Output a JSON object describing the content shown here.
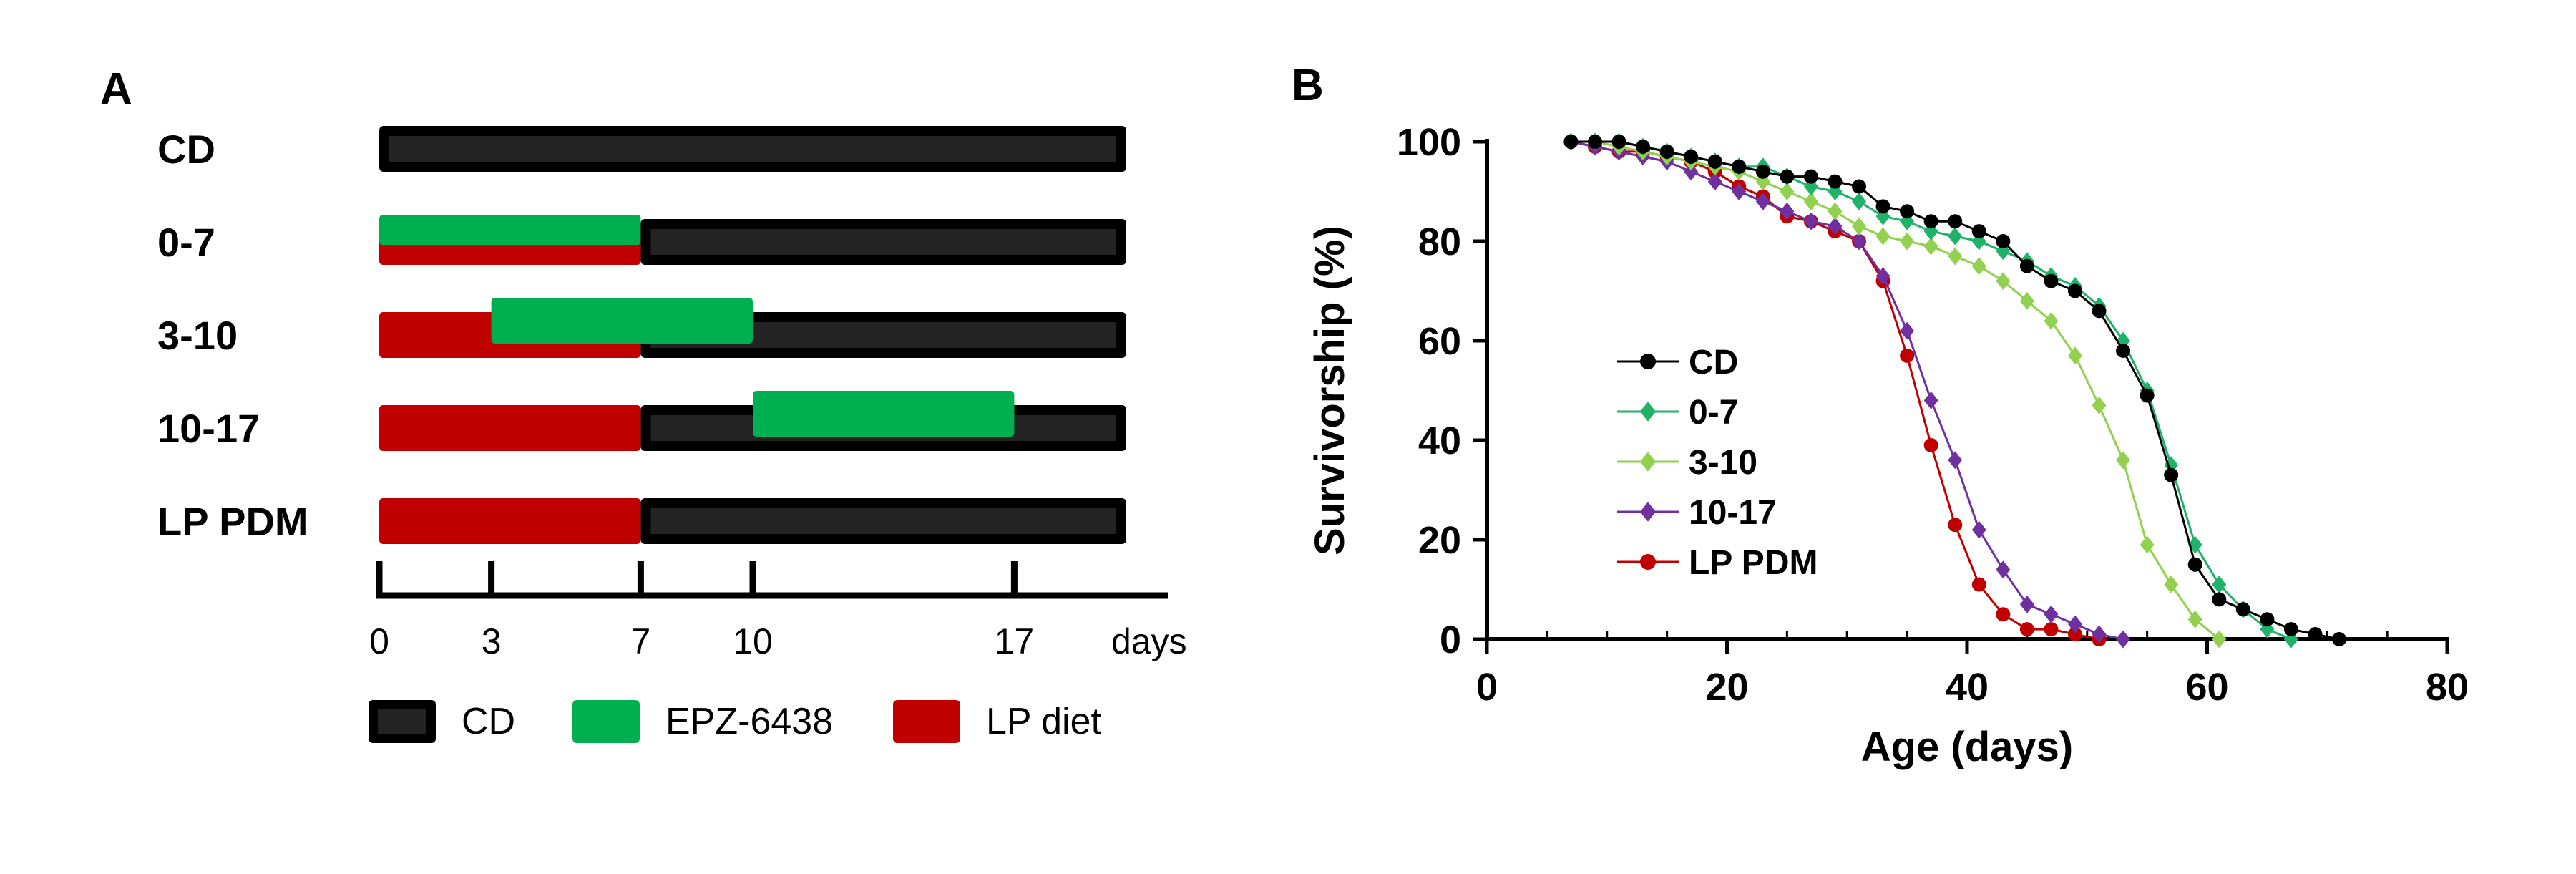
{
  "panel_a": {
    "letter": "A",
    "rows": [
      "CD",
      "0-7",
      "3-10",
      "10-17",
      "LP PDM"
    ],
    "axis_ticks": [
      "0",
      "3",
      "7",
      "10",
      "17"
    ],
    "axis_unit": "days",
    "legend": [
      "CD",
      "EPZ-6438",
      "LP diet"
    ],
    "colors": {
      "CD": "#000000",
      "EPZ-6438": "#00b050",
      "LP diet": "#c00000"
    }
  },
  "panel_b": {
    "letter": "B"
  },
  "chart_data": [
    {
      "type": "timeline",
      "xlim": [
        0,
        20
      ],
      "rows": [
        {
          "label": "CD",
          "segments": [
            {
              "treatment": "CD",
              "start": 0,
              "end": 20
            }
          ]
        },
        {
          "label": "0-7",
          "segments": [
            {
              "treatment": "CD",
              "start": 7,
              "end": 20
            },
            {
              "treatment": "LP diet",
              "start": 0,
              "end": 7
            },
            {
              "treatment": "EPZ-6438",
              "start": 0,
              "end": 7
            }
          ]
        },
        {
          "label": "3-10",
          "segments": [
            {
              "treatment": "CD",
              "start": 7,
              "end": 20
            },
            {
              "treatment": "LP diet",
              "start": 0,
              "end": 7
            },
            {
              "treatment": "EPZ-6438",
              "start": 3,
              "end": 10
            }
          ]
        },
        {
          "label": "10-17",
          "segments": [
            {
              "treatment": "CD",
              "start": 7,
              "end": 20
            },
            {
              "treatment": "LP diet",
              "start": 0,
              "end": 7
            },
            {
              "treatment": "EPZ-6438",
              "start": 10,
              "end": 17
            }
          ]
        },
        {
          "label": "LP PDM",
          "segments": [
            {
              "treatment": "CD",
              "start": 7,
              "end": 20
            },
            {
              "treatment": "LP diet",
              "start": 0,
              "end": 7
            }
          ]
        }
      ],
      "ticks": [
        0,
        3,
        7,
        10,
        17
      ]
    },
    {
      "type": "line",
      "xlabel": "Age (days)",
      "ylabel": "Survivorship (%)",
      "xlim": [
        0,
        80
      ],
      "ylim": [
        0,
        100
      ],
      "xticks": [
        0,
        20,
        40,
        60,
        80
      ],
      "yticks": [
        0,
        20,
        40,
        60,
        80,
        100
      ],
      "legend_position": "left-center",
      "series": [
        {
          "name": "CD",
          "color": "#000000",
          "marker": "circle",
          "x": [
            7,
            9,
            11,
            13,
            15,
            17,
            19,
            21,
            23,
            25,
            27,
            29,
            31,
            33,
            35,
            37,
            39,
            41,
            43,
            45,
            47,
            49,
            51,
            53,
            55,
            57,
            59,
            61,
            63,
            65,
            67,
            69,
            71
          ],
          "y": [
            100,
            100,
            100,
            99,
            98,
            97,
            96,
            95,
            94,
            93,
            93,
            92,
            91,
            87,
            86,
            84,
            84,
            82,
            80,
            75,
            72,
            70,
            66,
            58,
            49,
            33,
            15,
            8,
            6,
            4,
            2,
            1,
            0
          ]
        },
        {
          "name": "0-7",
          "color": "#1fb36a",
          "marker": "diamond",
          "x": [
            7,
            9,
            11,
            13,
            15,
            17,
            19,
            21,
            23,
            25,
            27,
            29,
            31,
            33,
            35,
            37,
            39,
            41,
            43,
            45,
            47,
            49,
            51,
            53,
            55,
            57,
            59,
            61,
            63,
            65,
            67
          ],
          "y": [
            100,
            100,
            100,
            99,
            98,
            97,
            96,
            95,
            95,
            93,
            91,
            90,
            88,
            85,
            84,
            82,
            81,
            80,
            78,
            76,
            73,
            71,
            67,
            60,
            50,
            35,
            19,
            11,
            6,
            2,
            0
          ]
        },
        {
          "name": "3-10",
          "color": "#92d050",
          "marker": "diamond",
          "x": [
            7,
            9,
            11,
            13,
            15,
            17,
            19,
            21,
            23,
            25,
            27,
            29,
            31,
            33,
            35,
            37,
            39,
            41,
            43,
            45,
            47,
            49,
            51,
            53,
            55,
            57,
            59,
            61
          ],
          "y": [
            100,
            100,
            99,
            98,
            97,
            96,
            95,
            94,
            92,
            90,
            88,
            86,
            83,
            81,
            80,
            79,
            77,
            75,
            72,
            68,
            64,
            57,
            47,
            36,
            19,
            11,
            4,
            0
          ]
        },
        {
          "name": "10-17",
          "color": "#7030a0",
          "marker": "diamond",
          "x": [
            7,
            9,
            11,
            13,
            15,
            17,
            19,
            21,
            23,
            25,
            27,
            29,
            31,
            33,
            35,
            37,
            39,
            41,
            43,
            45,
            47,
            49,
            51,
            53
          ],
          "y": [
            100,
            99,
            98,
            97,
            96,
            94,
            92,
            90,
            88,
            86,
            84,
            83,
            80,
            73,
            62,
            48,
            36,
            22,
            14,
            7,
            5,
            3,
            1,
            0
          ]
        },
        {
          "name": "LP PDM",
          "color": "#c00000",
          "marker": "circle",
          "x": [
            7,
            9,
            11,
            13,
            15,
            17,
            19,
            21,
            23,
            25,
            27,
            29,
            31,
            33,
            35,
            37,
            39,
            41,
            43,
            45,
            47,
            49,
            51
          ],
          "y": [
            100,
            99,
            98,
            98,
            97,
            96,
            94,
            91,
            89,
            85,
            84,
            82,
            80,
            72,
            57,
            39,
            23,
            11,
            5,
            2,
            2,
            1,
            0
          ]
        }
      ]
    }
  ]
}
